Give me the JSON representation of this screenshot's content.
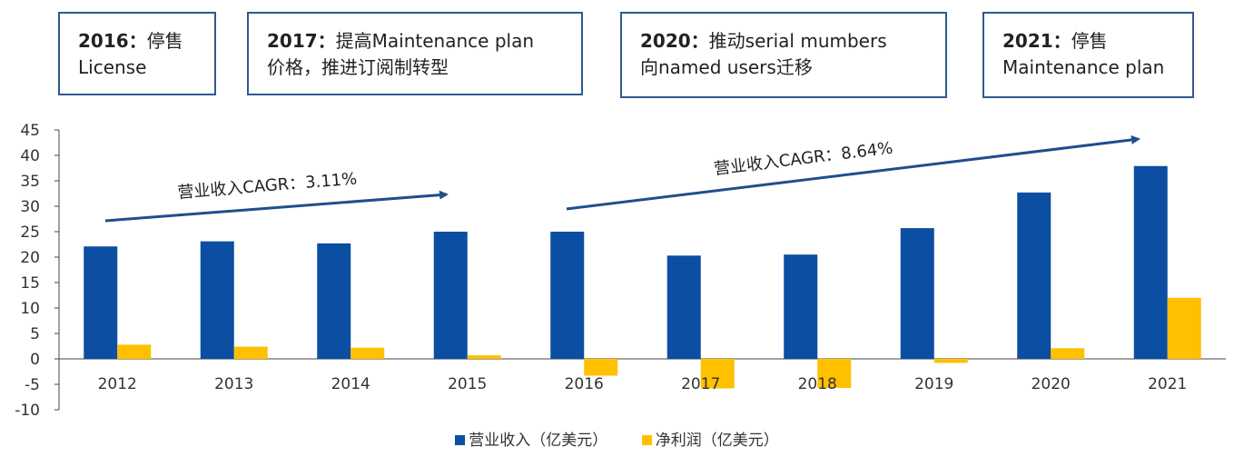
{
  "callouts": [
    {
      "year": "2016",
      "sep": "：",
      "line1": "停售",
      "line2": "License"
    },
    {
      "year": "2017",
      "sep": "：",
      "line1": "提高Maintenance plan",
      "line2": "价格，推进订阅制转型"
    },
    {
      "year": "2020",
      "sep": "：",
      "line1": "推动serial mumbers",
      "line2": "向named users迁移"
    },
    {
      "year": "2021",
      "sep": "：",
      "line1": "停售",
      "line2": "Maintenance plan"
    }
  ],
  "cagr_labels": [
    "营业收入CAGR：3.11%",
    "营业收入CAGR：8.64%"
  ],
  "colors": {
    "revenue": "#0b4ea2",
    "net_profit": "#ffc000",
    "arrow": "#1f4e8c",
    "border": "#2d5a8e"
  },
  "chart_data": {
    "type": "bar",
    "categories": [
      "2012",
      "2013",
      "2014",
      "2015",
      "2016",
      "2017",
      "2018",
      "2019",
      "2020",
      "2021"
    ],
    "series": [
      {
        "name": "营业收入（亿美元）",
        "values": [
          22.1,
          23.1,
          22.7,
          25.0,
          25.0,
          20.3,
          20.5,
          25.7,
          32.7,
          37.9
        ]
      },
      {
        "name": "净利润（亿美元）",
        "values": [
          2.8,
          2.4,
          2.2,
          0.7,
          -3.3,
          -5.8,
          -5.7,
          -0.8,
          2.1,
          12.0
        ]
      }
    ],
    "yticks": [
      "45",
      "40",
      "35",
      "30",
      "25",
      "20",
      "15",
      "10",
      "5",
      "0",
      "-5",
      "-10"
    ],
    "ylim": [
      -10,
      45
    ],
    "legend_position": "bottom",
    "grid": false
  }
}
